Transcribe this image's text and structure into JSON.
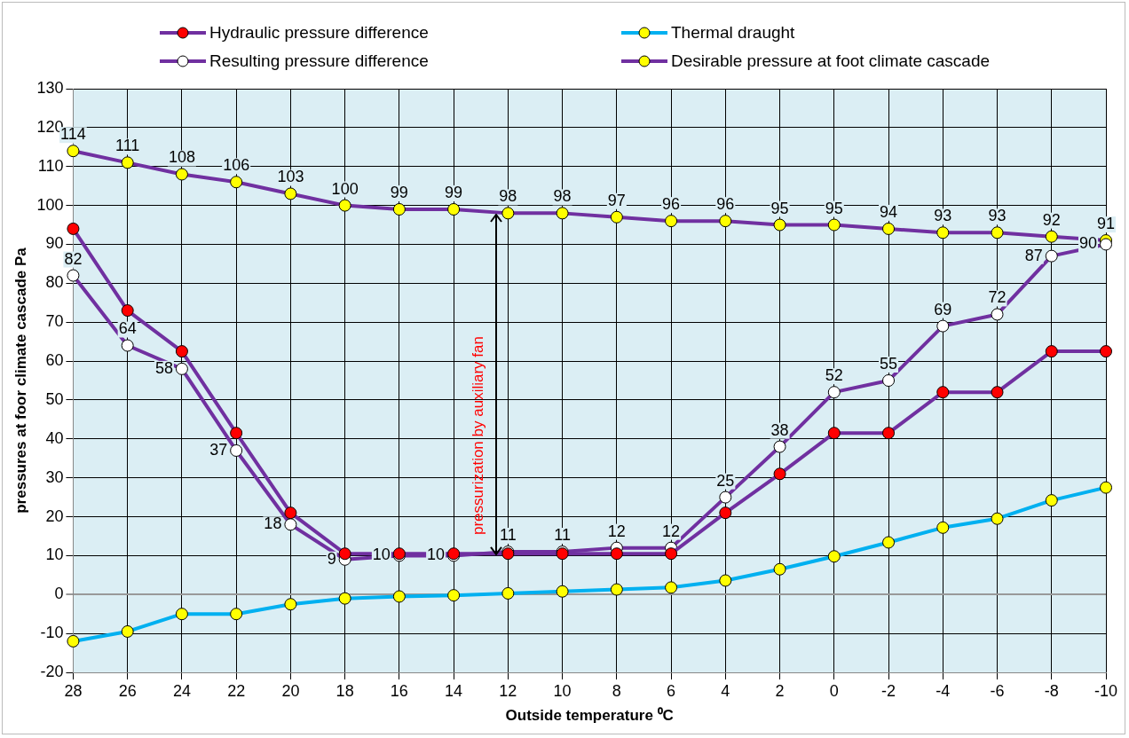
{
  "chart_data": {
    "type": "line",
    "xlabel": "Outside temperature ⁰C",
    "ylabel": "pressures at foor climate cascade Pa",
    "categories": [
      "28",
      "26",
      "24",
      "22",
      "20",
      "18",
      "16",
      "14",
      "12",
      "10",
      "8",
      "6",
      "4",
      "2",
      "0",
      "-2",
      "-4",
      "-6",
      "-8",
      "-10"
    ],
    "series": [
      {
        "name": "Hydraulic pressure difference",
        "color": "#7030a0",
        "colors": [
          "#ff0000",
          "#ff0000",
          "#ff0000",
          "#ff0000",
          "#ff0000",
          "#ff0000",
          "#ff0000",
          "#ff0000",
          "#ff0000",
          "#ff0000",
          "#ff0000",
          "#ff0000",
          "#ff0000",
          "#ff0000",
          "#ff0000",
          "#ff0000",
          "#ff0000",
          "#ff0000",
          "#ff0000",
          "#ff0000"
        ],
        "values": [
          94,
          73,
          62.5,
          41.5,
          21,
          10.5,
          10.5,
          10.5,
          10.5,
          10.5,
          10.5,
          10.5,
          21,
          31,
          41.5,
          41.5,
          52,
          52,
          62.5,
          62.5
        ]
      },
      {
        "name": "Thermal draught",
        "color": "#00b0f0",
        "colors": [
          "#ffff00",
          "#ffff00",
          "#ffff00",
          "#ffff00",
          "#ffff00",
          "#ffff00",
          "#ffff00",
          "#ffff00",
          "#ffff00",
          "#ffff00",
          "#ffff00",
          "#ffff00",
          "#ffff00",
          "#ffff00",
          "#ffff00",
          "#ffff00",
          "#ffff00",
          "#ffff00",
          "#ffff00",
          "#ffff00"
        ],
        "values": [
          -12,
          -9.5,
          -5,
          -5,
          -2.5,
          -1,
          -0.5,
          -0.2,
          0.3,
          0.8,
          1.3,
          1.8,
          3.6,
          6.5,
          9.8,
          13.4,
          17.2,
          19.5,
          24.2,
          27.5
        ]
      },
      {
        "name": "Resulting pressure difference",
        "color": "#7030a0",
        "colors": [
          "#ffffff",
          "#ffffff",
          "#ffffff",
          "#ffffff",
          "#ffffff",
          "#ffffff",
          "#ffffff",
          "#ffffff",
          "#ffffff",
          "#ffffff",
          "#ffffff",
          "#ffffff",
          "#ffffff",
          "#ffffff",
          "#ffffff",
          "#ffffff",
          "#ffffff",
          "#ffffff",
          "#ffffff",
          "#ffffff"
        ],
        "values": [
          82,
          64,
          58,
          37,
          18,
          9,
          10,
          10,
          11,
          11,
          12,
          12,
          25,
          38,
          52,
          55,
          69,
          72,
          87,
          90
        ],
        "value_labels": [
          "82",
          "64",
          "58",
          "37",
          "18",
          "9",
          "10",
          "10",
          "11",
          "11",
          "12",
          "12",
          "25",
          "38",
          "52",
          "55",
          "69",
          "72",
          "87",
          "90"
        ]
      },
      {
        "name": "Desirable pressure at foot climate cascade",
        "color": "#7030a0",
        "colors": [
          "#ffff00",
          "#ffff00",
          "#ffff00",
          "#ffff00",
          "#ffff00",
          "#ffff00",
          "#ffff00",
          "#ffff00",
          "#ffff00",
          "#ffff00",
          "#ffff00",
          "#ffff00",
          "#ffff00",
          "#ffff00",
          "#ffff00",
          "#ffff00",
          "#ffff00",
          "#ffff00",
          "#ffff00",
          "#ffff00"
        ],
        "values": [
          114,
          111,
          108,
          106,
          103,
          100,
          99,
          99,
          98,
          98,
          97,
          96,
          96,
          95,
          95,
          94,
          93,
          93,
          92,
          91
        ],
        "value_labels": [
          "114",
          "111",
          "108",
          "106",
          "103",
          "100",
          "99",
          "99",
          "98",
          "98",
          "97",
          "96",
          "96",
          "95",
          "95",
          "94",
          "93",
          "93",
          "92",
          "91"
        ]
      }
    ],
    "ylim": [
      -20,
      130
    ],
    "yticks": [
      -20,
      -10,
      0,
      10,
      20,
      30,
      40,
      50,
      60,
      70,
      80,
      90,
      100,
      110,
      120,
      130
    ],
    "grid": true,
    "legend": "top",
    "marker": "circle",
    "line_style": "solid",
    "annotations": [
      "pressurization by auxiliary fan"
    ]
  }
}
